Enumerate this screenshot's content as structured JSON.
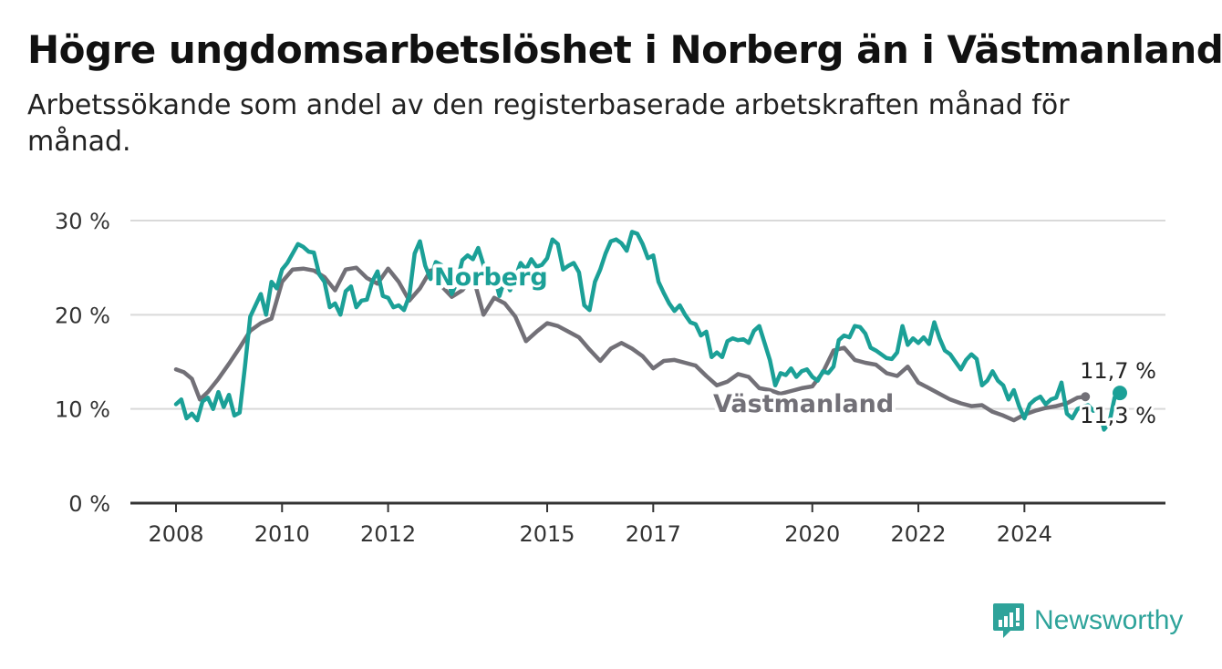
{
  "title": "Högre ungdomsarbetslöshet i Norberg än i Västmanland",
  "subtitle": "Arbetssökande som andel av den registerbaserade arbetskraften månad för månad.",
  "brand": "Newsworthy",
  "chart_data": {
    "type": "line",
    "ylim": [
      0,
      30
    ],
    "yticks": [
      0,
      10,
      20,
      30
    ],
    "ytick_labels": [
      "0 %",
      "10 %",
      "20 %",
      "30 %"
    ],
    "xlim": [
      2008,
      2025.8
    ],
    "xticks": [
      2008,
      2010,
      2012,
      2015,
      2017,
      2020,
      2022,
      2024
    ],
    "xtick_labels": [
      "2008",
      "2010",
      "2012",
      "2015",
      "2017",
      "2020",
      "2022",
      "2024"
    ],
    "grid": true,
    "series": [
      {
        "name": "Västmanland",
        "color": "#727077",
        "end_label": "11,3 %",
        "points": [
          [
            2008.0,
            14.2
          ],
          [
            2008.15,
            13.9
          ],
          [
            2008.3,
            13.2
          ],
          [
            2008.45,
            11.0
          ],
          [
            2008.6,
            11.8
          ],
          [
            2008.8,
            13.2
          ],
          [
            2009.0,
            14.8
          ],
          [
            2009.2,
            16.5
          ],
          [
            2009.4,
            18.3
          ],
          [
            2009.6,
            19.1
          ],
          [
            2009.8,
            19.6
          ],
          [
            2010.0,
            23.5
          ],
          [
            2010.2,
            24.8
          ],
          [
            2010.4,
            24.9
          ],
          [
            2010.6,
            24.7
          ],
          [
            2010.8,
            24.0
          ],
          [
            2011.0,
            22.6
          ],
          [
            2011.2,
            24.8
          ],
          [
            2011.4,
            25.0
          ],
          [
            2011.6,
            23.9
          ],
          [
            2011.8,
            23.3
          ],
          [
            2012.0,
            24.9
          ],
          [
            2012.2,
            23.5
          ],
          [
            2012.4,
            21.5
          ],
          [
            2012.6,
            22.8
          ],
          [
            2012.8,
            24.7
          ],
          [
            2013.0,
            23.1
          ],
          [
            2013.2,
            21.9
          ],
          [
            2013.4,
            22.6
          ],
          [
            2013.6,
            24.1
          ],
          [
            2013.8,
            20.0
          ],
          [
            2014.0,
            21.8
          ],
          [
            2014.2,
            21.2
          ],
          [
            2014.4,
            19.8
          ],
          [
            2014.6,
            17.2
          ],
          [
            2014.8,
            18.2
          ],
          [
            2015.0,
            19.1
          ],
          [
            2015.2,
            18.8
          ],
          [
            2015.4,
            18.2
          ],
          [
            2015.6,
            17.6
          ],
          [
            2015.8,
            16.3
          ],
          [
            2016.0,
            15.1
          ],
          [
            2016.2,
            16.4
          ],
          [
            2016.4,
            17.0
          ],
          [
            2016.6,
            16.4
          ],
          [
            2016.8,
            15.6
          ],
          [
            2017.0,
            14.3
          ],
          [
            2017.2,
            15.1
          ],
          [
            2017.4,
            15.2
          ],
          [
            2017.6,
            14.9
          ],
          [
            2017.8,
            14.6
          ],
          [
            2018.0,
            13.5
          ],
          [
            2018.2,
            12.5
          ],
          [
            2018.4,
            12.9
          ],
          [
            2018.6,
            13.7
          ],
          [
            2018.8,
            13.4
          ],
          [
            2019.0,
            12.2
          ],
          [
            2019.2,
            12.0
          ],
          [
            2019.4,
            11.6
          ],
          [
            2019.6,
            11.9
          ],
          [
            2019.8,
            12.2
          ],
          [
            2020.0,
            12.4
          ],
          [
            2020.2,
            13.9
          ],
          [
            2020.4,
            16.2
          ],
          [
            2020.6,
            16.5
          ],
          [
            2020.8,
            15.2
          ],
          [
            2021.0,
            14.9
          ],
          [
            2021.2,
            14.7
          ],
          [
            2021.4,
            13.8
          ],
          [
            2021.6,
            13.5
          ],
          [
            2021.8,
            14.5
          ],
          [
            2022.0,
            12.8
          ],
          [
            2022.2,
            12.2
          ],
          [
            2022.4,
            11.6
          ],
          [
            2022.6,
            11.0
          ],
          [
            2022.8,
            10.6
          ],
          [
            2023.0,
            10.3
          ],
          [
            2023.2,
            10.4
          ],
          [
            2023.4,
            9.7
          ],
          [
            2023.6,
            9.3
          ],
          [
            2023.8,
            8.8
          ],
          [
            2024.0,
            9.4
          ],
          [
            2024.2,
            9.8
          ],
          [
            2024.4,
            10.1
          ],
          [
            2024.6,
            10.3
          ],
          [
            2024.8,
            10.6
          ],
          [
            2025.0,
            11.2
          ],
          [
            2025.15,
            11.3
          ]
        ]
      },
      {
        "name": "Norberg",
        "color": "#1ba097",
        "end_label": "11,7 %",
        "points": [
          [
            2008.0,
            10.5
          ],
          [
            2008.1,
            11.0
          ],
          [
            2008.2,
            9.0
          ],
          [
            2008.3,
            9.5
          ],
          [
            2008.4,
            8.8
          ],
          [
            2008.5,
            10.8
          ],
          [
            2008.6,
            11.2
          ],
          [
            2008.7,
            10.0
          ],
          [
            2008.8,
            11.8
          ],
          [
            2008.9,
            10.2
          ],
          [
            2009.0,
            11.5
          ],
          [
            2009.1,
            9.3
          ],
          [
            2009.2,
            9.6
          ],
          [
            2009.3,
            14.5
          ],
          [
            2009.4,
            19.8
          ],
          [
            2009.5,
            21.0
          ],
          [
            2009.6,
            22.2
          ],
          [
            2009.7,
            20.0
          ],
          [
            2009.8,
            23.5
          ],
          [
            2009.9,
            22.8
          ],
          [
            2010.0,
            24.8
          ],
          [
            2010.1,
            25.5
          ],
          [
            2010.2,
            26.5
          ],
          [
            2010.3,
            27.5
          ],
          [
            2010.4,
            27.2
          ],
          [
            2010.5,
            26.7
          ],
          [
            2010.6,
            26.6
          ],
          [
            2010.7,
            24.3
          ],
          [
            2010.8,
            23.5
          ],
          [
            2010.9,
            20.8
          ],
          [
            2011.0,
            21.2
          ],
          [
            2011.1,
            20.0
          ],
          [
            2011.2,
            22.5
          ],
          [
            2011.3,
            23.0
          ],
          [
            2011.4,
            20.8
          ],
          [
            2011.5,
            21.5
          ],
          [
            2011.6,
            21.6
          ],
          [
            2011.7,
            23.5
          ],
          [
            2011.8,
            24.6
          ],
          [
            2011.9,
            22.0
          ],
          [
            2012.0,
            21.8
          ],
          [
            2012.1,
            20.8
          ],
          [
            2012.2,
            21.0
          ],
          [
            2012.3,
            20.5
          ],
          [
            2012.4,
            22.0
          ],
          [
            2012.5,
            26.5
          ],
          [
            2012.6,
            27.8
          ],
          [
            2012.7,
            25.2
          ],
          [
            2012.8,
            23.8
          ],
          [
            2012.9,
            25.6
          ],
          [
            2013.0,
            25.3
          ],
          [
            2013.1,
            24.5
          ],
          [
            2013.2,
            22.2
          ],
          [
            2013.3,
            23.5
          ],
          [
            2013.4,
            25.8
          ],
          [
            2013.5,
            26.3
          ],
          [
            2013.6,
            25.9
          ],
          [
            2013.7,
            27.1
          ],
          [
            2013.8,
            25.3
          ],
          [
            2013.9,
            23.6
          ],
          [
            2014.0,
            24.2
          ],
          [
            2014.1,
            22.0
          ],
          [
            2014.2,
            23.8
          ],
          [
            2014.3,
            22.6
          ],
          [
            2014.4,
            24.0
          ],
          [
            2014.5,
            25.5
          ],
          [
            2014.6,
            24.8
          ],
          [
            2014.7,
            25.9
          ],
          [
            2014.8,
            25.1
          ],
          [
            2014.9,
            25.3
          ],
          [
            2015.0,
            26.0
          ],
          [
            2015.1,
            28.0
          ],
          [
            2015.2,
            27.5
          ],
          [
            2015.3,
            24.8
          ],
          [
            2015.4,
            25.2
          ],
          [
            2015.5,
            25.5
          ],
          [
            2015.6,
            24.5
          ],
          [
            2015.7,
            21.0
          ],
          [
            2015.8,
            20.5
          ],
          [
            2015.9,
            23.5
          ],
          [
            2016.0,
            24.8
          ],
          [
            2016.1,
            26.5
          ],
          [
            2016.2,
            27.8
          ],
          [
            2016.3,
            28.0
          ],
          [
            2016.4,
            27.6
          ],
          [
            2016.5,
            26.8
          ],
          [
            2016.6,
            28.8
          ],
          [
            2016.7,
            28.6
          ],
          [
            2016.8,
            27.5
          ],
          [
            2016.9,
            26.0
          ],
          [
            2017.0,
            26.3
          ],
          [
            2017.1,
            23.5
          ],
          [
            2017.2,
            22.3
          ],
          [
            2017.3,
            21.2
          ],
          [
            2017.4,
            20.4
          ],
          [
            2017.5,
            21.0
          ],
          [
            2017.6,
            20.0
          ],
          [
            2017.7,
            19.2
          ],
          [
            2017.8,
            19.0
          ],
          [
            2017.9,
            17.8
          ],
          [
            2018.0,
            18.2
          ],
          [
            2018.1,
            15.5
          ],
          [
            2018.2,
            16.0
          ],
          [
            2018.3,
            15.5
          ],
          [
            2018.4,
            17.2
          ],
          [
            2018.5,
            17.5
          ],
          [
            2018.6,
            17.3
          ],
          [
            2018.7,
            17.4
          ],
          [
            2018.8,
            17.0
          ],
          [
            2018.9,
            18.3
          ],
          [
            2019.0,
            18.8
          ],
          [
            2019.1,
            17.0
          ],
          [
            2019.2,
            15.2
          ],
          [
            2019.3,
            12.5
          ],
          [
            2019.4,
            13.8
          ],
          [
            2019.5,
            13.6
          ],
          [
            2019.6,
            14.3
          ],
          [
            2019.7,
            13.4
          ],
          [
            2019.8,
            14.0
          ],
          [
            2019.9,
            14.2
          ],
          [
            2020.0,
            13.4
          ],
          [
            2020.1,
            13.0
          ],
          [
            2020.2,
            14.0
          ],
          [
            2020.3,
            13.8
          ],
          [
            2020.4,
            14.5
          ],
          [
            2020.5,
            17.3
          ],
          [
            2020.6,
            17.8
          ],
          [
            2020.7,
            17.6
          ],
          [
            2020.8,
            18.8
          ],
          [
            2020.9,
            18.7
          ],
          [
            2021.0,
            18.0
          ],
          [
            2021.1,
            16.5
          ],
          [
            2021.2,
            16.2
          ],
          [
            2021.3,
            15.8
          ],
          [
            2021.4,
            15.4
          ],
          [
            2021.5,
            15.3
          ],
          [
            2021.6,
            16.0
          ],
          [
            2021.7,
            18.8
          ],
          [
            2021.8,
            16.8
          ],
          [
            2021.9,
            17.5
          ],
          [
            2022.0,
            17.0
          ],
          [
            2022.1,
            17.6
          ],
          [
            2022.2,
            16.9
          ],
          [
            2022.3,
            19.2
          ],
          [
            2022.4,
            17.5
          ],
          [
            2022.5,
            16.2
          ],
          [
            2022.6,
            15.8
          ],
          [
            2022.7,
            15.0
          ],
          [
            2022.8,
            14.2
          ],
          [
            2022.9,
            15.2
          ],
          [
            2023.0,
            15.8
          ],
          [
            2023.1,
            15.3
          ],
          [
            2023.2,
            12.5
          ],
          [
            2023.3,
            13.0
          ],
          [
            2023.4,
            14.0
          ],
          [
            2023.5,
            13.0
          ],
          [
            2023.6,
            12.5
          ],
          [
            2023.7,
            11.0
          ],
          [
            2023.8,
            12.0
          ],
          [
            2023.9,
            10.3
          ],
          [
            2024.0,
            9.0
          ],
          [
            2024.1,
            10.5
          ],
          [
            2024.2,
            11.0
          ],
          [
            2024.3,
            11.3
          ],
          [
            2024.4,
            10.5
          ],
          [
            2024.5,
            11.0
          ],
          [
            2024.6,
            11.2
          ],
          [
            2024.7,
            12.8
          ],
          [
            2024.8,
            9.5
          ],
          [
            2024.9,
            9.0
          ],
          [
            2025.0,
            10.0
          ],
          [
            2025.1,
            10.2
          ],
          [
            2025.2,
            10.4
          ],
          [
            2025.3,
            9.8
          ],
          [
            2025.4,
            10.2
          ],
          [
            2025.5,
            7.8
          ],
          [
            2025.6,
            8.5
          ],
          [
            2025.7,
            11.2
          ],
          [
            2025.8,
            11.7
          ]
        ]
      }
    ]
  }
}
